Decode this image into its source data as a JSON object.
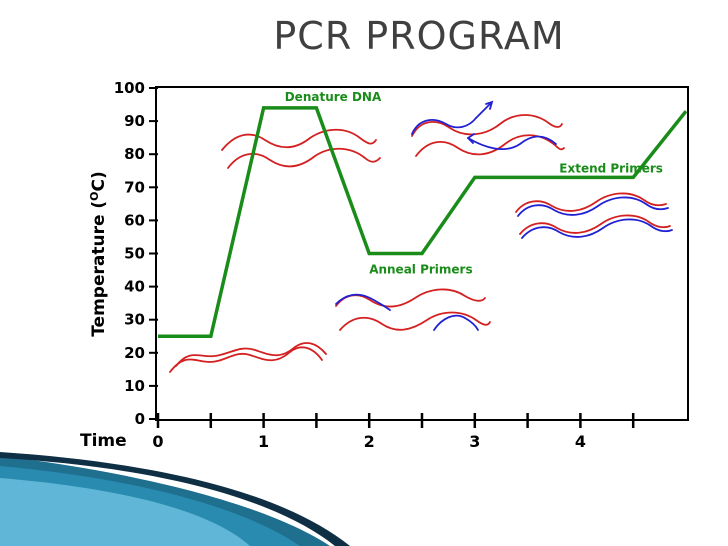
{
  "slide": {
    "title": "PCR PROGRAM"
  },
  "chart_data": {
    "type": "line",
    "title": "PCR PROGRAM",
    "xlabel": "Time",
    "ylabel_main": "Temperature (",
    "ylabel_sup": "O",
    "ylabel_end": "C)",
    "xlim": [
      0,
      5
    ],
    "ylim": [
      0,
      100
    ],
    "x_ticks": [
      0,
      1,
      2,
      3,
      4
    ],
    "x_tick_labels": [
      "0",
      "1",
      "2",
      "3",
      "4"
    ],
    "x_minor_ticks": [
      0.5,
      1.5,
      2.5,
      3.5,
      4.5
    ],
    "y_ticks": [
      0,
      10,
      20,
      30,
      40,
      50,
      60,
      70,
      80,
      90,
      100
    ],
    "y_tick_labels": [
      "0",
      "10",
      "20",
      "30",
      "40",
      "50",
      "60",
      "70",
      "80",
      "90",
      "100"
    ],
    "grid": false,
    "series": [
      {
        "color": "#1a8c1a",
        "points": [
          [
            0,
            25
          ],
          [
            0.5,
            25
          ],
          [
            1,
            94
          ],
          [
            1.5,
            94
          ],
          [
            2,
            50
          ],
          [
            2.5,
            50
          ],
          [
            3,
            73
          ],
          [
            4.5,
            73
          ],
          [
            5,
            93
          ]
        ]
      }
    ],
    "annotations": [
      {
        "text": "Denature DNA",
        "x": 1.2,
        "y": 96
      },
      {
        "text": "Anneal Primers",
        "x": 2.0,
        "y": 44
      },
      {
        "text": "Extend Primers",
        "x": 3.8,
        "y": 74.5
      }
    ],
    "colors": {
      "strand": "#d42020",
      "primer": "#2020d4",
      "line": "#1a8c1a"
    }
  }
}
